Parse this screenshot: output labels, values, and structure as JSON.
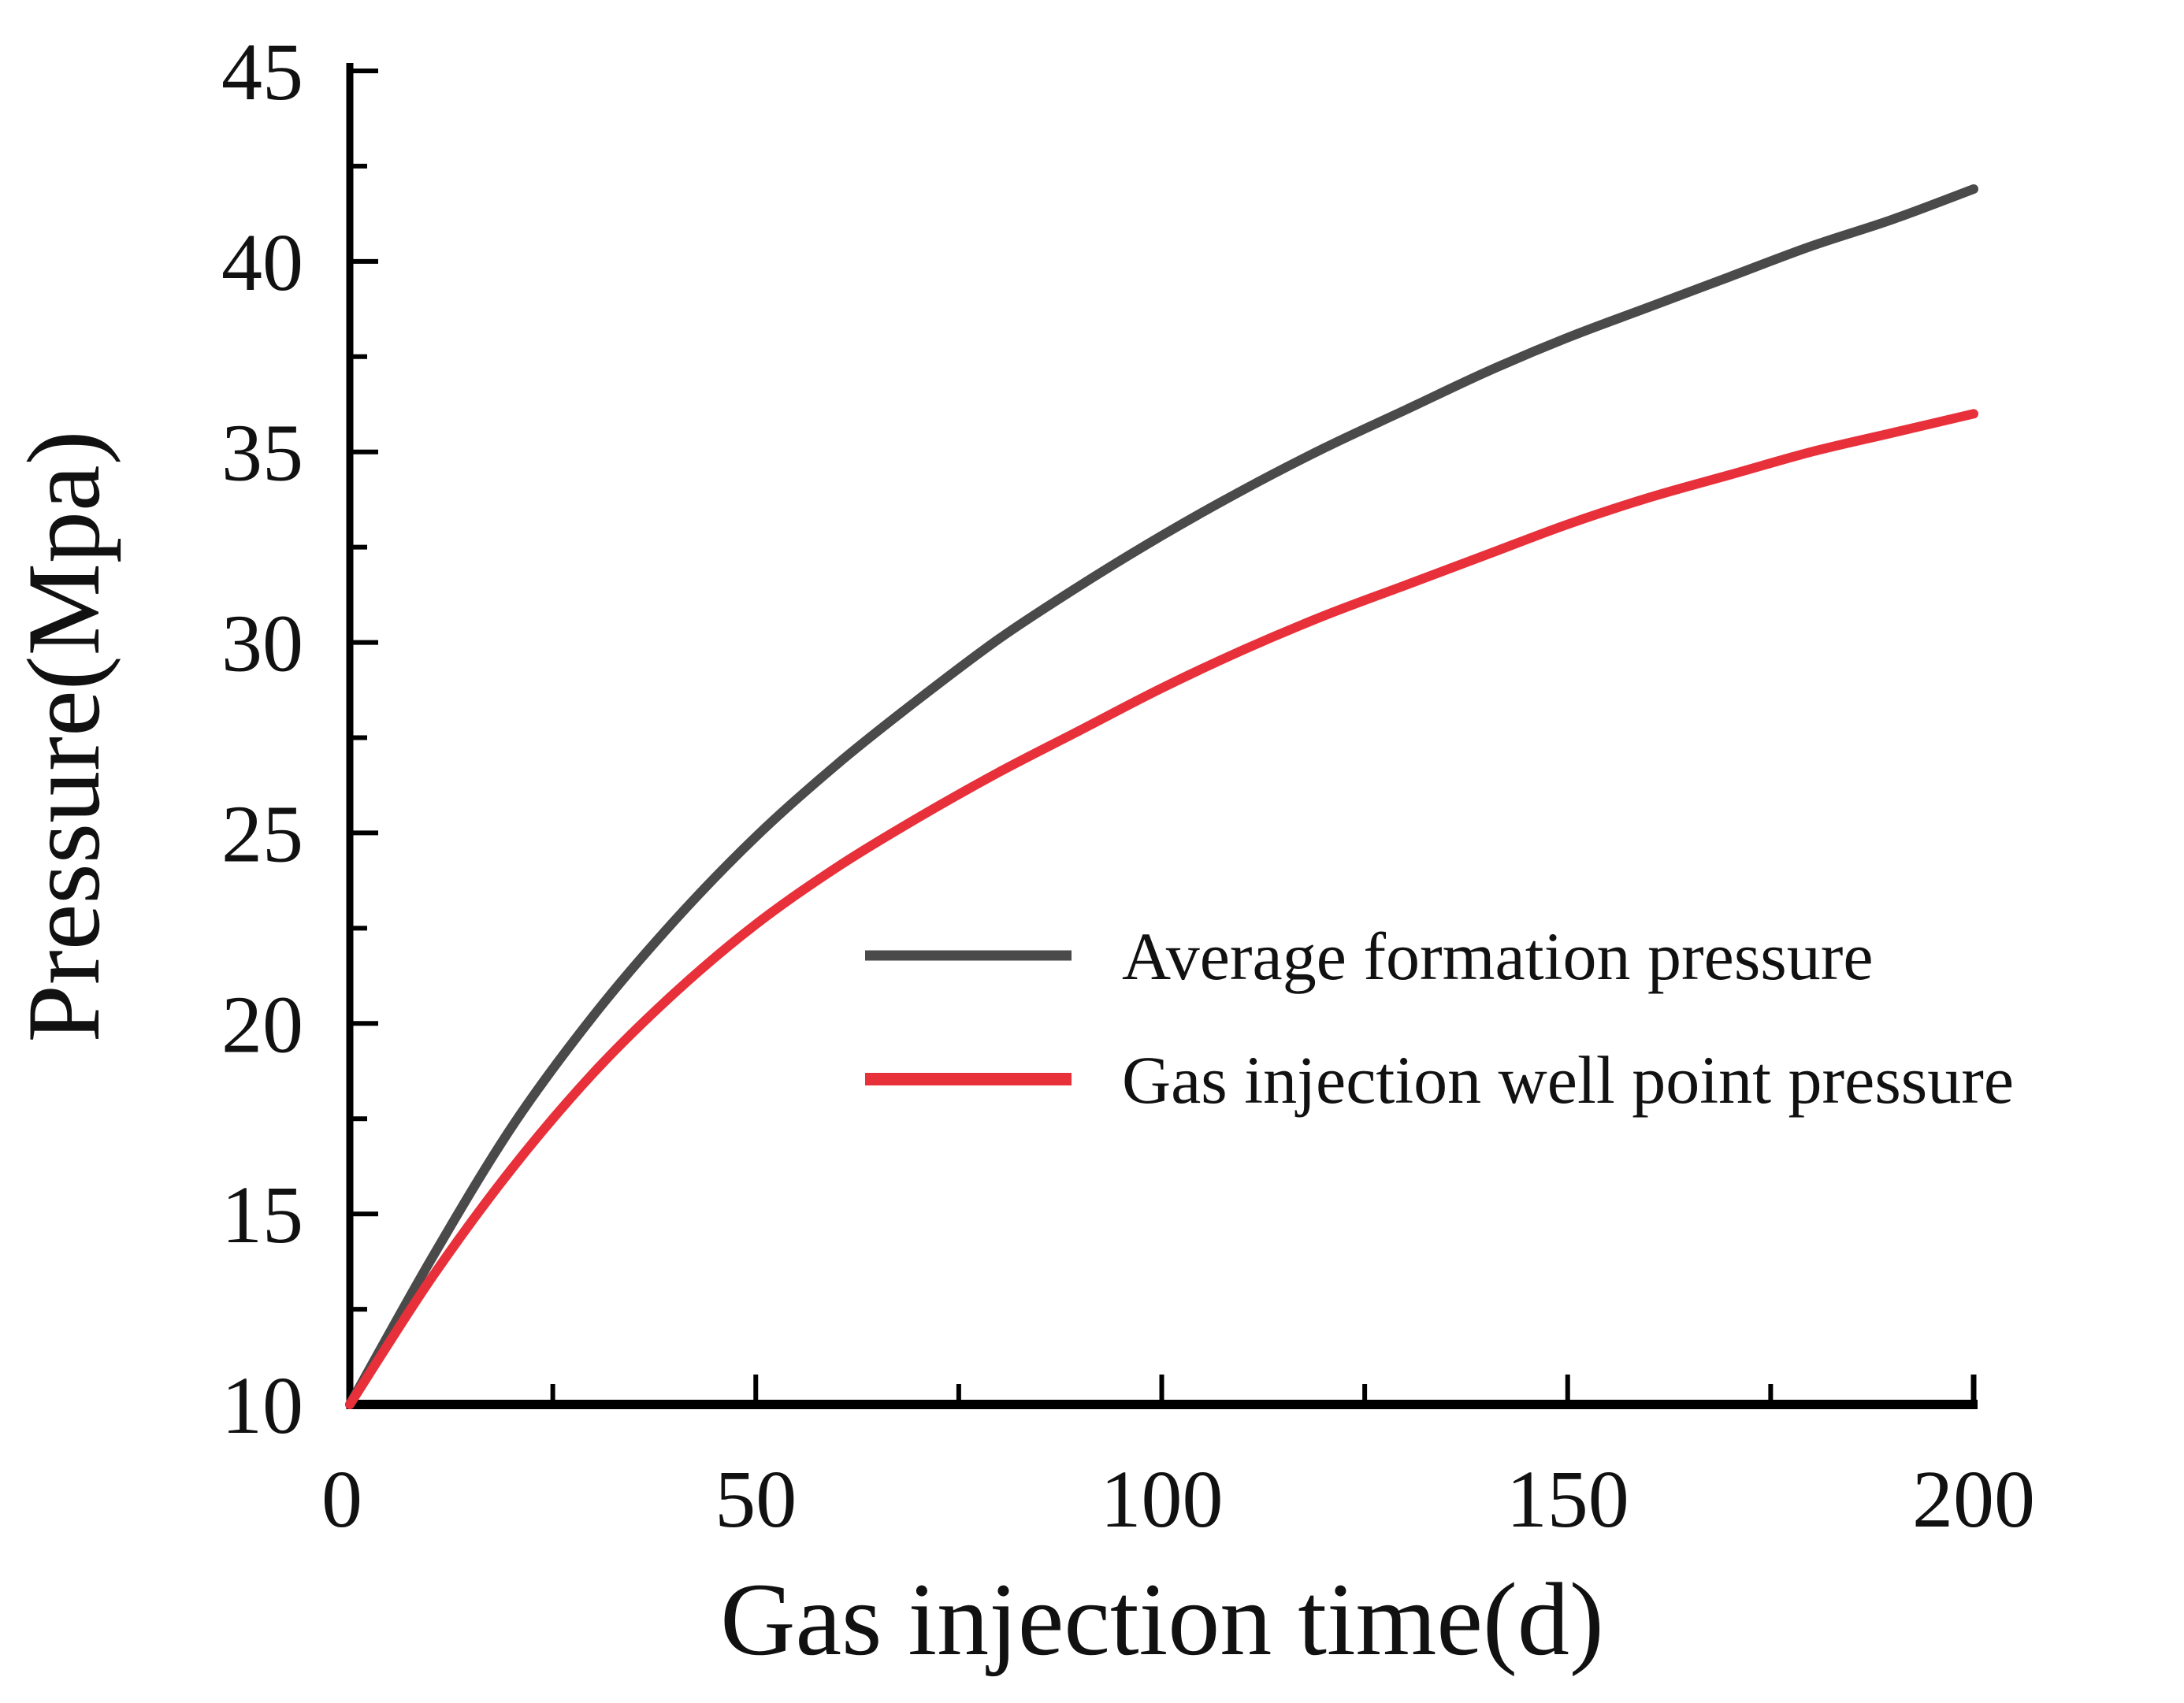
{
  "chart_data": {
    "type": "line",
    "title": "",
    "xlabel": "Gas injection time(d)",
    "ylabel": "Pressure(Mpa)",
    "xlim": [
      0,
      200
    ],
    "ylim": [
      10,
      45
    ],
    "xticks": [
      0,
      50,
      100,
      150,
      200
    ],
    "yticks": [
      10,
      15,
      20,
      25,
      30,
      35,
      40,
      45
    ],
    "x_minor_step": 25,
    "y_minor_step": 2.5,
    "grid": false,
    "legend_position": "center-right",
    "series": [
      {
        "name": "Average formation pressure",
        "color": "#4a4a4a",
        "x": [
          0,
          10,
          20,
          30,
          40,
          50,
          60,
          70,
          80,
          90,
          100,
          110,
          120,
          130,
          140,
          150,
          160,
          170,
          180,
          190,
          200
        ],
        "y": [
          10,
          13.8,
          17.3,
          20.2,
          22.7,
          24.9,
          26.8,
          28.5,
          30.1,
          31.5,
          32.8,
          34.0,
          35.1,
          36.1,
          37.1,
          38.0,
          38.8,
          39.6,
          40.4,
          41.1,
          41.9
        ]
      },
      {
        "name": "Gas injection well point pressure",
        "color": "#e8303a",
        "x": [
          0,
          10,
          20,
          30,
          40,
          50,
          60,
          70,
          80,
          90,
          100,
          110,
          120,
          130,
          140,
          150,
          160,
          170,
          180,
          190,
          200
        ],
        "y": [
          10,
          13.3,
          16.2,
          18.7,
          20.8,
          22.6,
          24.1,
          25.4,
          26.6,
          27.7,
          28.8,
          29.8,
          30.7,
          31.5,
          32.3,
          33.1,
          33.8,
          34.4,
          35.0,
          35.5,
          36.0
        ]
      }
    ]
  }
}
